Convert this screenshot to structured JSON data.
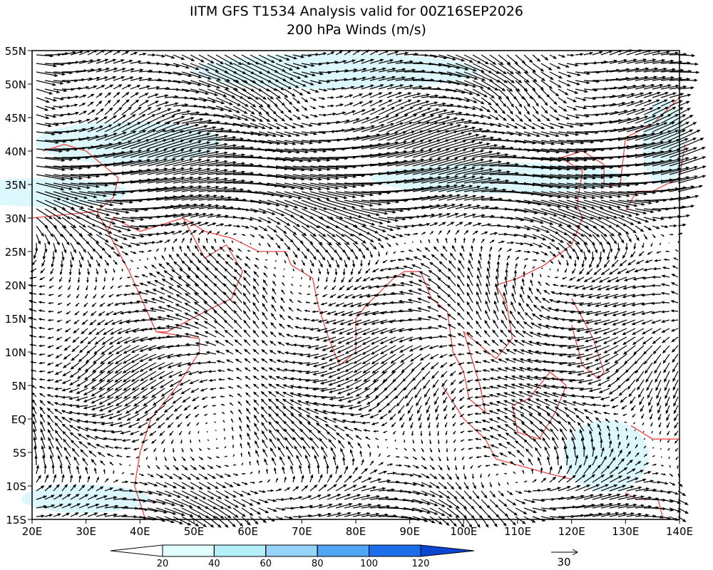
{
  "map": {
    "title": [
      "IITM GFS T1534 Analysis valid for 00Z16SEP2026",
      "200 hPa Winds (m/s)"
    ],
    "lon_ticks": [
      {
        "value": 20,
        "label": "20E"
      },
      {
        "value": 30,
        "label": "30E"
      },
      {
        "value": 40,
        "label": "40E"
      },
      {
        "value": 50,
        "label": "50E"
      },
      {
        "value": 60,
        "label": "60E"
      },
      {
        "value": 70,
        "label": "70E"
      },
      {
        "value": 80,
        "label": "80E"
      },
      {
        "value": 90,
        "label": "90E"
      },
      {
        "value": 100,
        "label": "100E"
      },
      {
        "value": 110,
        "label": "110E"
      },
      {
        "value": 120,
        "label": "120E"
      },
      {
        "value": 130,
        "label": "130E"
      },
      {
        "value": 140,
        "label": "140E"
      }
    ],
    "lat_ticks": [
      {
        "value": 55,
        "label": "55N"
      },
      {
        "value": 50,
        "label": "50N"
      },
      {
        "value": 45,
        "label": "45N"
      },
      {
        "value": 40,
        "label": "40N"
      },
      {
        "value": 35,
        "label": "35N"
      },
      {
        "value": 30,
        "label": "30N"
      },
      {
        "value": 25,
        "label": "25N"
      },
      {
        "value": 20,
        "label": "20N"
      },
      {
        "value": 15,
        "label": "15N"
      },
      {
        "value": 10,
        "label": "10N"
      },
      {
        "value": 5,
        "label": "5N"
      },
      {
        "value": 0,
        "label": "EQ"
      },
      {
        "value": -5,
        "label": "5S"
      },
      {
        "value": -10,
        "label": "10S"
      },
      {
        "value": -15,
        "label": "15S"
      }
    ],
    "lonlim": [
      20,
      140
    ],
    "latlim": [
      -15,
      55
    ],
    "colorbar": {
      "levels": [
        20,
        40,
        60,
        80,
        100,
        120
      ],
      "colors": [
        "#ffffff",
        "#e1ffff",
        "#b4f0fa",
        "#96d2fa",
        "#50a5f5",
        "#1e6eeb",
        "#0a46d2"
      ]
    },
    "reference_vector": {
      "value": 30,
      "label": "30"
    }
  }
}
